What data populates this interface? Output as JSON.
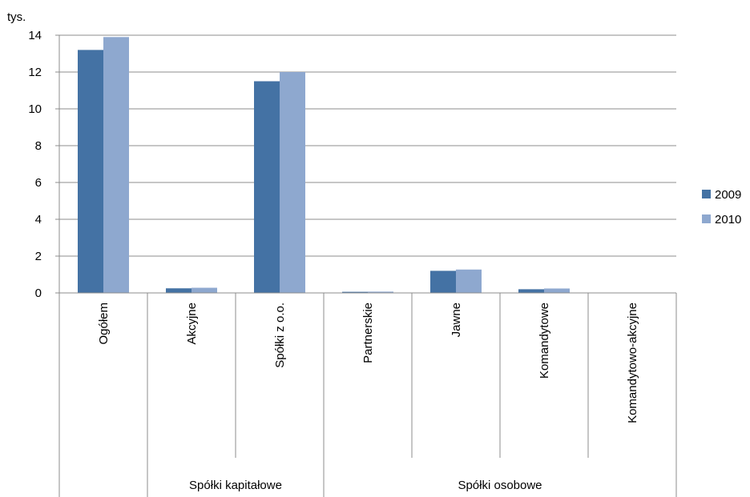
{
  "chart_data": {
    "type": "bar",
    "title": "",
    "ylabel": "tys.",
    "xlabel": "",
    "ylim": [
      0,
      14
    ],
    "yticks": [
      0,
      2,
      4,
      6,
      8,
      10,
      12,
      14
    ],
    "grid": true,
    "legend_position": "right",
    "categories": [
      "Ogółem",
      "Akcyjne",
      "Spółki z o.o.",
      "Partnerskie",
      "Jawne",
      "Komandytowe",
      "Komandytowo-akcyjne"
    ],
    "groups": [
      {
        "label": "Spółki kapitałowe",
        "categories": [
          "Akcyjne",
          "Spółki z o.o."
        ]
      },
      {
        "label": "Spółki osobowe",
        "categories": [
          "Partnerskie",
          "Jawne",
          "Komandytowe",
          "Komandytowo-akcyjne"
        ]
      }
    ],
    "series": [
      {
        "name": "2009",
        "color": "#4472a4",
        "values": [
          13.2,
          0.25,
          11.5,
          0.06,
          1.2,
          0.2,
          0.01
        ]
      },
      {
        "name": "2010",
        "color": "#8ea8cf",
        "values": [
          13.9,
          0.28,
          12.0,
          0.07,
          1.27,
          0.24,
          0.01
        ]
      }
    ]
  }
}
